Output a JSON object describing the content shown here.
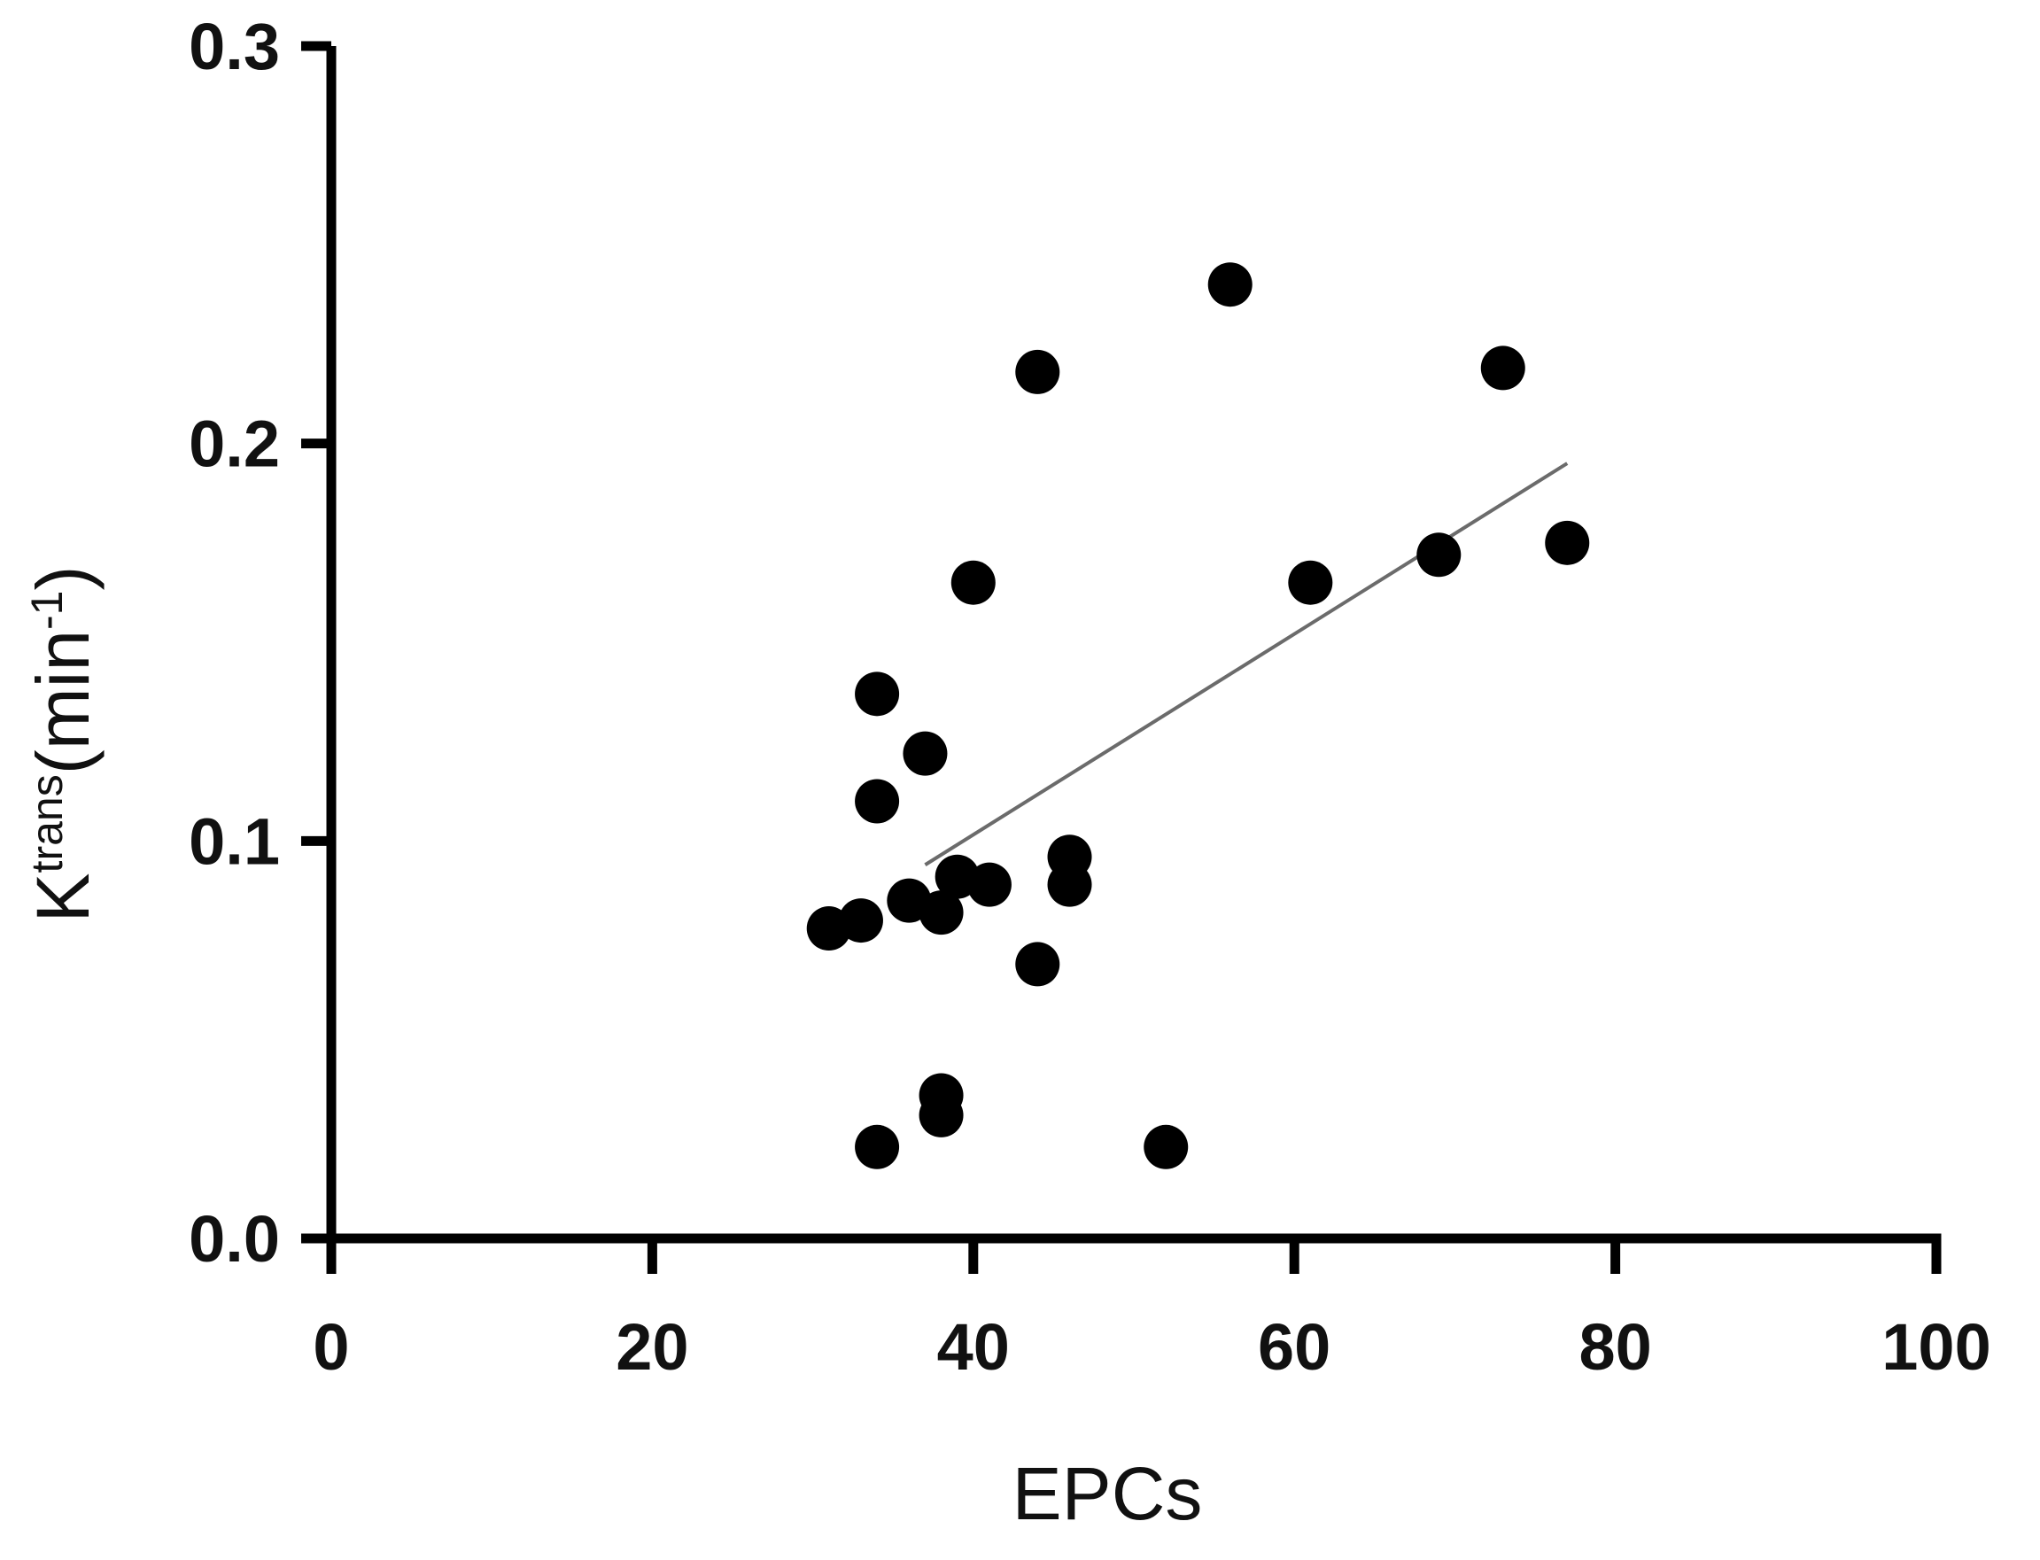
{
  "chart_data": {
    "type": "scatter",
    "title": "",
    "xlabel": "EPCs",
    "ylabel": {
      "base": "K",
      "superscript": "trans",
      "unit_prefix": "(min",
      "unit_exponent": "-1",
      "unit_suffix": ")"
    },
    "xlim": [
      0,
      100
    ],
    "ylim": [
      0,
      0.3
    ],
    "xticks": [
      0,
      20,
      40,
      60,
      80,
      100
    ],
    "yticks": [
      0.0,
      0.1,
      0.2,
      0.3
    ],
    "xtick_labels": [
      "0",
      "20",
      "40",
      "60",
      "80",
      "100"
    ],
    "ytick_labels": [
      "0.0",
      "0.1",
      "0.2",
      "0.3"
    ],
    "grid": false,
    "marker_color": "#000000",
    "line_color": "#6b6b6b",
    "points": [
      {
        "x": 56,
        "y": 0.24
      },
      {
        "x": 44,
        "y": 0.218
      },
      {
        "x": 73,
        "y": 0.219
      },
      {
        "x": 77,
        "y": 0.175
      },
      {
        "x": 69,
        "y": 0.172
      },
      {
        "x": 61,
        "y": 0.165
      },
      {
        "x": 40,
        "y": 0.165
      },
      {
        "x": 34,
        "y": 0.137
      },
      {
        "x": 37,
        "y": 0.122
      },
      {
        "x": 34,
        "y": 0.11
      },
      {
        "x": 46,
        "y": 0.096
      },
      {
        "x": 46,
        "y": 0.089
      },
      {
        "x": 39,
        "y": 0.091
      },
      {
        "x": 41,
        "y": 0.089
      },
      {
        "x": 36,
        "y": 0.085
      },
      {
        "x": 38,
        "y": 0.082
      },
      {
        "x": 33,
        "y": 0.08
      },
      {
        "x": 31,
        "y": 0.078
      },
      {
        "x": 44,
        "y": 0.069
      },
      {
        "x": 38,
        "y": 0.036
      },
      {
        "x": 38,
        "y": 0.031
      },
      {
        "x": 34,
        "y": 0.023
      },
      {
        "x": 52,
        "y": 0.023
      }
    ],
    "regression_line": {
      "x": [
        37,
        77
      ],
      "y": [
        0.094,
        0.195
      ]
    }
  }
}
